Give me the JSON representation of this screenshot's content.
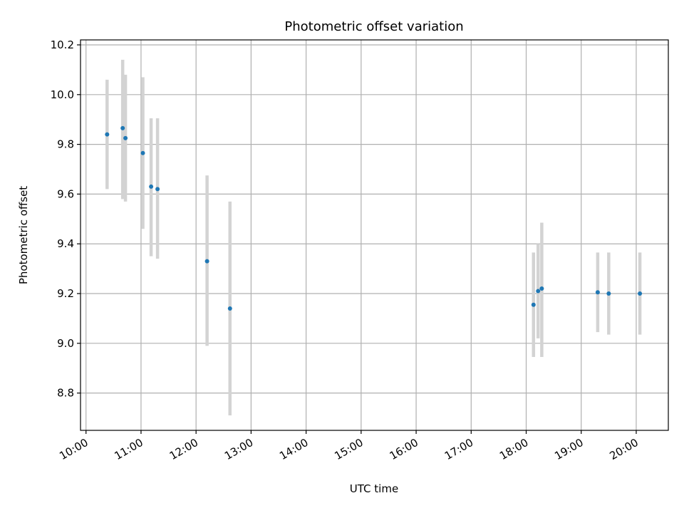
{
  "chart_data": {
    "type": "scatter",
    "title": "Photometric offset variation",
    "xlabel": "UTC time",
    "ylabel": "Photometric offset",
    "x_ticks": [
      "10:00",
      "11:00",
      "12:00",
      "13:00",
      "14:00",
      "15:00",
      "16:00",
      "17:00",
      "18:00",
      "19:00",
      "20:00"
    ],
    "y_ticks": [
      "8.8",
      "9.0",
      "9.2",
      "9.4",
      "9.6",
      "9.8",
      "10.0",
      "10.2"
    ],
    "xlim": [
      "09:54",
      "20:35"
    ],
    "ylim": [
      8.65,
      10.22
    ],
    "grid": true,
    "colors": {
      "point": "#1f77b4",
      "error_bar": "#d3d3d3"
    },
    "series": [
      {
        "points": [
          {
            "x": "10:23",
            "y": 9.84,
            "yerr_low": 9.62,
            "yerr_high": 10.06
          },
          {
            "x": "10:40",
            "y": 9.865,
            "yerr_low": 9.58,
            "yerr_high": 10.14
          },
          {
            "x": "10:43",
            "y": 9.825,
            "yerr_low": 9.57,
            "yerr_high": 10.08
          },
          {
            "x": "11:02",
            "y": 9.765,
            "yerr_low": 9.46,
            "yerr_high": 10.07
          },
          {
            "x": "11:11",
            "y": 9.63,
            "yerr_low": 9.35,
            "yerr_high": 9.905
          },
          {
            "x": "11:18",
            "y": 9.62,
            "yerr_low": 9.34,
            "yerr_high": 9.905
          },
          {
            "x": "12:12",
            "y": 9.33,
            "yerr_low": 8.99,
            "yerr_high": 9.675
          },
          {
            "x": "12:37",
            "y": 9.14,
            "yerr_low": 8.71,
            "yerr_high": 9.57
          },
          {
            "x": "18:08",
            "y": 9.155,
            "yerr_low": 8.945,
            "yerr_high": 9.365
          },
          {
            "x": "18:13",
            "y": 9.21,
            "yerr_low": 9.02,
            "yerr_high": 9.4
          },
          {
            "x": "18:17",
            "y": 9.22,
            "yerr_low": 8.945,
            "yerr_high": 9.485
          },
          {
            "x": "19:18",
            "y": 9.205,
            "yerr_low": 9.045,
            "yerr_high": 9.365
          },
          {
            "x": "19:30",
            "y": 9.2,
            "yerr_low": 9.035,
            "yerr_high": 9.365
          },
          {
            "x": "20:04",
            "y": 9.2,
            "yerr_low": 9.035,
            "yerr_high": 9.365
          }
        ]
      }
    ]
  }
}
